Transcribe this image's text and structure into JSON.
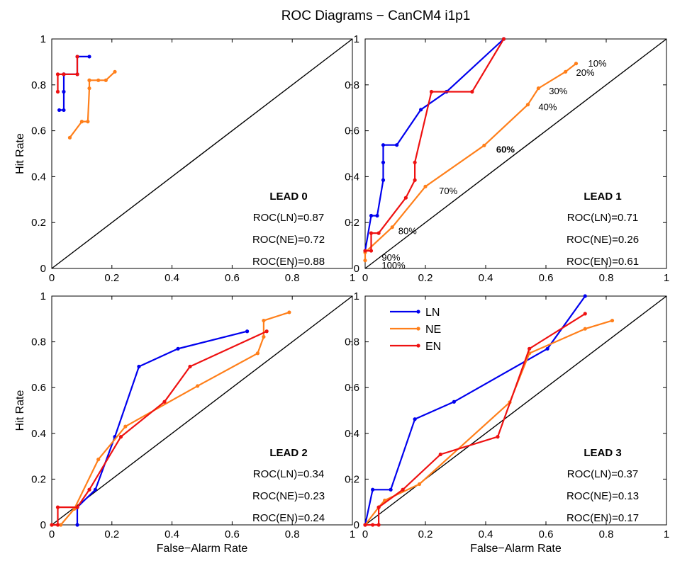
{
  "title": "ROC Diagrams − CanCM4 i1p1",
  "colors": {
    "LN": "#0000ee",
    "NE": "#ff7f1a",
    "EN": "#ee1111",
    "diagonal": "#000000"
  },
  "chart_data": [
    {
      "type": "line",
      "label": "LEAD 0",
      "xlabel": "",
      "ylabel": "Hit Rate",
      "xlim": [
        0,
        1
      ],
      "ylim": [
        0,
        1
      ],
      "xticks": [
        "0",
        "0.2",
        "0.4",
        "0.6",
        "0.8",
        "1"
      ],
      "yticks": [
        "0",
        "0.2",
        "0.4",
        "0.6",
        "0.8",
        "1"
      ],
      "scores": [
        "ROC(LN)=0.87",
        "ROC(NE)=0.72",
        "ROC(EN)=0.88"
      ],
      "series": [
        {
          "name": "LN",
          "x": [
            0.025,
            0.04,
            0.04,
            0.04,
            0.04,
            0.085,
            0.085,
            0.125
          ],
          "y": [
            0.69,
            0.69,
            0.77,
            0.846,
            0.846,
            0.846,
            0.923,
            0.923
          ]
        },
        {
          "name": "NE",
          "x": [
            0.06,
            0.1,
            0.12,
            0.125,
            0.125,
            0.125,
            0.155,
            0.18,
            0.21
          ],
          "y": [
            0.57,
            0.64,
            0.64,
            0.785,
            0.82,
            0.82,
            0.82,
            0.82,
            0.857
          ]
        },
        {
          "name": "EN",
          "x": [
            0.02,
            0.02,
            0.04,
            0.085,
            0.085
          ],
          "y": [
            0.77,
            0.846,
            0.846,
            0.846,
            0.923
          ]
        }
      ],
      "annotations": []
    },
    {
      "type": "line",
      "label": "LEAD 1",
      "xlabel": "",
      "ylabel": "",
      "xlim": [
        0,
        1
      ],
      "ylim": [
        0,
        1
      ],
      "xticks": [
        "0",
        "0.2",
        "0.4",
        "0.6",
        "0.8",
        "1"
      ],
      "yticks": [
        "0",
        "0.2",
        "0.4",
        "0.6",
        "0.8",
        "1"
      ],
      "scores": [
        "ROC(LN)=0.71",
        "ROC(NE)=0.26",
        "ROC(EN)=0.61"
      ],
      "series": [
        {
          "name": "LN",
          "x": [
            0,
            0.02,
            0.04,
            0.06,
            0.06,
            0.06,
            0.105,
            0.185,
            0.27,
            0.46
          ],
          "y": [
            0.077,
            0.23,
            0.23,
            0.385,
            0.462,
            0.538,
            0.538,
            0.692,
            0.77,
            1.0
          ]
        },
        {
          "name": "NE",
          "x": [
            0,
            0.0,
            0.09,
            0.2,
            0.395,
            0.54,
            0.575,
            0.665,
            0.7
          ],
          "y": [
            0.035,
            0.07,
            0.18,
            0.357,
            0.536,
            0.714,
            0.785,
            0.857,
            0.893
          ]
        },
        {
          "name": "EN",
          "x": [
            0,
            0.02,
            0.02,
            0.045,
            0.135,
            0.165,
            0.165,
            0.22,
            0.355,
            0.46
          ],
          "y": [
            0.077,
            0.077,
            0.154,
            0.154,
            0.308,
            0.385,
            0.462,
            0.77,
            0.77,
            1.0
          ]
        }
      ],
      "annotations": [
        {
          "text": "10%",
          "x": 0.74,
          "y": 0.895,
          "bold": false
        },
        {
          "text": "20%",
          "x": 0.7,
          "y": 0.855,
          "bold": false
        },
        {
          "text": "30%",
          "x": 0.61,
          "y": 0.775,
          "bold": false
        },
        {
          "text": "40%",
          "x": 0.575,
          "y": 0.705,
          "bold": false
        },
        {
          "text": "60%",
          "x": 0.435,
          "y": 0.52,
          "bold": true
        },
        {
          "text": "70%",
          "x": 0.245,
          "y": 0.34,
          "bold": false
        },
        {
          "text": "80%",
          "x": 0.11,
          "y": 0.165,
          "bold": false
        },
        {
          "text": "90%",
          "x": 0.055,
          "y": 0.05,
          "bold": false
        },
        {
          "text": "100%",
          "x": 0.055,
          "y": 0.015,
          "bold": false
        }
      ]
    },
    {
      "type": "line",
      "label": "LEAD 2",
      "xlabel": "False−Alarm Rate",
      "ylabel": "Hit Rate",
      "xlim": [
        0,
        1
      ],
      "ylim": [
        0,
        1
      ],
      "xticks": [
        "0",
        "0.2",
        "0.4",
        "0.6",
        "0.8",
        "1"
      ],
      "yticks": [
        "0",
        "0.2",
        "0.4",
        "0.6",
        "0.8",
        "1"
      ],
      "scores": [
        "ROC(LN)=0.34",
        "ROC(NE)=0.23",
        "ROC(EN)=0.24"
      ],
      "series": [
        {
          "name": "LN",
          "x": [
            0.085,
            0.085,
            0.145,
            0.21,
            0.29,
            0.42,
            0.65
          ],
          "y": [
            0,
            0.077,
            0.154,
            0.385,
            0.692,
            0.77,
            0.846
          ]
        },
        {
          "name": "NE",
          "x": [
            0,
            0.03,
            0.075,
            0.155,
            0.245,
            0.485,
            0.685,
            0.705,
            0.705,
            0.79
          ],
          "y": [
            0,
            0,
            0.07,
            0.286,
            0.43,
            0.607,
            0.75,
            0.822,
            0.893,
            0.929
          ]
        },
        {
          "name": "EN",
          "x": [
            0,
            0.02,
            0.02,
            0.085,
            0.125,
            0.23,
            0.375,
            0.46,
            0.715
          ],
          "y": [
            0,
            0,
            0.077,
            0.077,
            0.154,
            0.385,
            0.538,
            0.692,
            0.846
          ]
        }
      ],
      "annotations": []
    },
    {
      "type": "line",
      "label": "LEAD 3",
      "xlabel": "False−Alarm Rate",
      "ylabel": "",
      "xlim": [
        0,
        1
      ],
      "ylim": [
        0,
        1
      ],
      "xticks": [
        "0",
        "0.2",
        "0.4",
        "0.6",
        "0.8",
        "1"
      ],
      "yticks": [
        "0",
        "0.2",
        "0.4",
        "0.6",
        "0.8",
        "1"
      ],
      "scores": [
        "ROC(LN)=0.37",
        "ROC(NE)=0.13",
        "ROC(EN)=0.17"
      ],
      "legend": {
        "position": "top-left",
        "entries": [
          "LN",
          "NE",
          "EN"
        ]
      },
      "series": [
        {
          "name": "LN",
          "x": [
            0,
            0.025,
            0.085,
            0.165,
            0.295,
            0.605,
            0.73
          ],
          "y": [
            0,
            0.154,
            0.154,
            0.462,
            0.538,
            0.77,
            1.0
          ]
        },
        {
          "name": "NE",
          "x": [
            0,
            0.045,
            0.065,
            0.18,
            0.48,
            0.545,
            0.73,
            0.82
          ],
          "y": [
            0,
            0.077,
            0.107,
            0.178,
            0.536,
            0.75,
            0.857,
            0.893
          ]
        },
        {
          "name": "EN",
          "x": [
            0,
            0.025,
            0.045,
            0.045,
            0.125,
            0.25,
            0.44,
            0.545,
            0.73
          ],
          "y": [
            0,
            0,
            0,
            0.077,
            0.154,
            0.308,
            0.385,
            0.77,
            0.923
          ]
        }
      ],
      "annotations": []
    }
  ]
}
